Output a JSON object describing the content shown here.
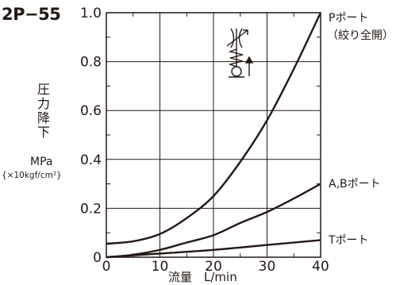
{
  "header": {
    "code": "2P−55"
  },
  "y_axis": {
    "label_chars": [
      "圧",
      "力",
      "降",
      "下"
    ],
    "unit": "MPa",
    "unit_alt": "{×10kgf/cm²}"
  },
  "x_axis": {
    "label": "流量　L/min"
  },
  "chart_data": {
    "type": "line",
    "xlabel": "流量　L/min",
    "ylabel": "圧力降下 MPa {×10kgf/cm²}",
    "xlim": [
      0,
      40
    ],
    "ylim": [
      0,
      1.0
    ],
    "xticks": [
      "0",
      "10",
      "20",
      "30",
      "40"
    ],
    "yticks": [
      "0",
      "0.2",
      "0.4",
      "0.6",
      "0.8",
      "1.0"
    ],
    "grid": true,
    "series": [
      {
        "name": "Pポート",
        "name_line2": "（絞り全開）",
        "x": [
          0,
          5,
          10,
          15,
          20,
          25,
          30,
          35,
          40
        ],
        "y": [
          0.055,
          0.065,
          0.095,
          0.16,
          0.25,
          0.39,
          0.56,
          0.77,
          1.0
        ]
      },
      {
        "name": "A,Bポート",
        "x": [
          0,
          5,
          10,
          15,
          20,
          25,
          30,
          35,
          40
        ],
        "y": [
          0.0,
          0.01,
          0.03,
          0.06,
          0.09,
          0.14,
          0.185,
          0.24,
          0.3
        ]
      },
      {
        "name": "Tポート",
        "x": [
          0,
          10,
          20,
          30,
          40
        ],
        "y": [
          0.0,
          0.015,
          0.03,
          0.05,
          0.07
        ]
      }
    ]
  },
  "colors": {
    "line": "#231815",
    "background": "#ffffff"
  },
  "icons": {
    "symbol": "check-valve-throttle-symbol-icon"
  }
}
